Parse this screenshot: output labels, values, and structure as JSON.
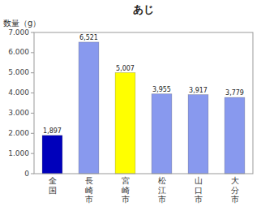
{
  "chart_data": {
    "type": "bar",
    "title": "あじ",
    "ylabel": "数量（g）",
    "categories": [
      "全\n国",
      "長\n崎\n市",
      "宮\n崎\n市",
      "松\n江\n市",
      "山\n口\n市",
      "大\n分\n市"
    ],
    "values": [
      1897,
      6521,
      5007,
      3955,
      3917,
      3779
    ],
    "value_labels": [
      "1,897",
      "6,521",
      "5,007",
      "3,955",
      "3,917",
      "3,779"
    ],
    "colors": [
      "#0000bb",
      "#8899ee",
      "#ffff00",
      "#8899ee",
      "#8899ee",
      "#8899ee"
    ],
    "data_labels": true,
    "ylim": [
      0,
      7000
    ],
    "yticks": [
      0,
      {
        "value": 1000,
        "label": "1.000"
      },
      {
        "value": 2000,
        "label": "2.000"
      },
      {
        "value": 3000,
        "label": "3.000"
      },
      {
        "value": 4000,
        "label": "4.000"
      },
      {
        "value": 5000,
        "label": "5.000"
      },
      {
        "value": 6000,
        "label": "6.000"
      },
      {
        "value": 7000,
        "label": "7.000"
      }
    ],
    "grid": false
  }
}
